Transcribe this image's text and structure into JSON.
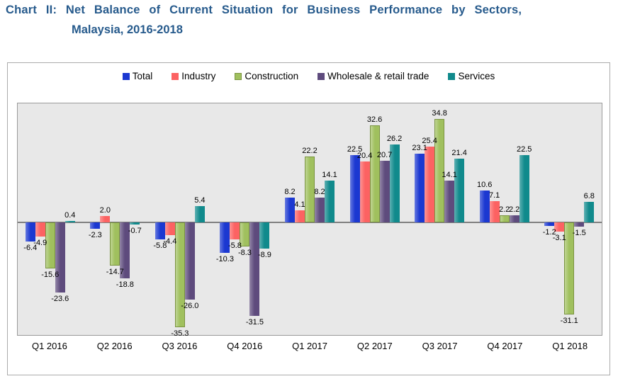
{
  "page": {
    "title_line1": "Chart II: Net Balance of Current Situation for Business Performance by Sectors,",
    "title_line2": "Malaysia, 2016-2018",
    "title_color": "#265a8c"
  },
  "chart_data": {
    "type": "bar",
    "title": "Net Balance of Current Situation for Business Performance by Sectors, Malaysia, 2016-2018",
    "xlabel": "",
    "ylabel": "",
    "ylim": [
      -38,
      40
    ],
    "grid": false,
    "legend_position": "top",
    "value_label_format": "one-decimal",
    "plot_background": "#e8e8e8",
    "zero_line_color": "#7f7f7f",
    "categories": [
      "Q1 2016",
      "Q2 2016",
      "Q3 2016",
      "Q4 2016",
      "Q1 2017",
      "Q2 2017",
      "Q3 2017",
      "Q4 2017",
      "Q1 2018"
    ],
    "series": [
      {
        "name": "Total",
        "color": "#1b38d1",
        "border": "",
        "values": [
          -6.4,
          -2.3,
          -5.8,
          -10.3,
          8.2,
          22.5,
          23.1,
          10.6,
          -1.2
        ]
      },
      {
        "name": "Industry",
        "color": "#fc6262",
        "border": "",
        "values": [
          -4.9,
          2.0,
          -4.4,
          -5.8,
          4.1,
          20.4,
          25.4,
          7.1,
          -3.1
        ]
      },
      {
        "name": "Construction",
        "color": "#a0c05e",
        "border": "#7a9440",
        "values": [
          -15.6,
          -14.7,
          -35.3,
          -8.3,
          22.2,
          32.6,
          34.8,
          2.2,
          -31.1
        ]
      },
      {
        "name": "Wholesale & retail trade",
        "color": "#5e4b7d",
        "border": "",
        "values": [
          -23.6,
          -18.8,
          -26.0,
          -31.5,
          8.2,
          20.7,
          14.1,
          2.2,
          -1.5
        ]
      },
      {
        "name": "Services",
        "color": "#108a8c",
        "border": "",
        "values": [
          0.4,
          -0.7,
          5.4,
          -8.9,
          14.1,
          26.2,
          21.4,
          22.5,
          6.8
        ]
      }
    ]
  }
}
